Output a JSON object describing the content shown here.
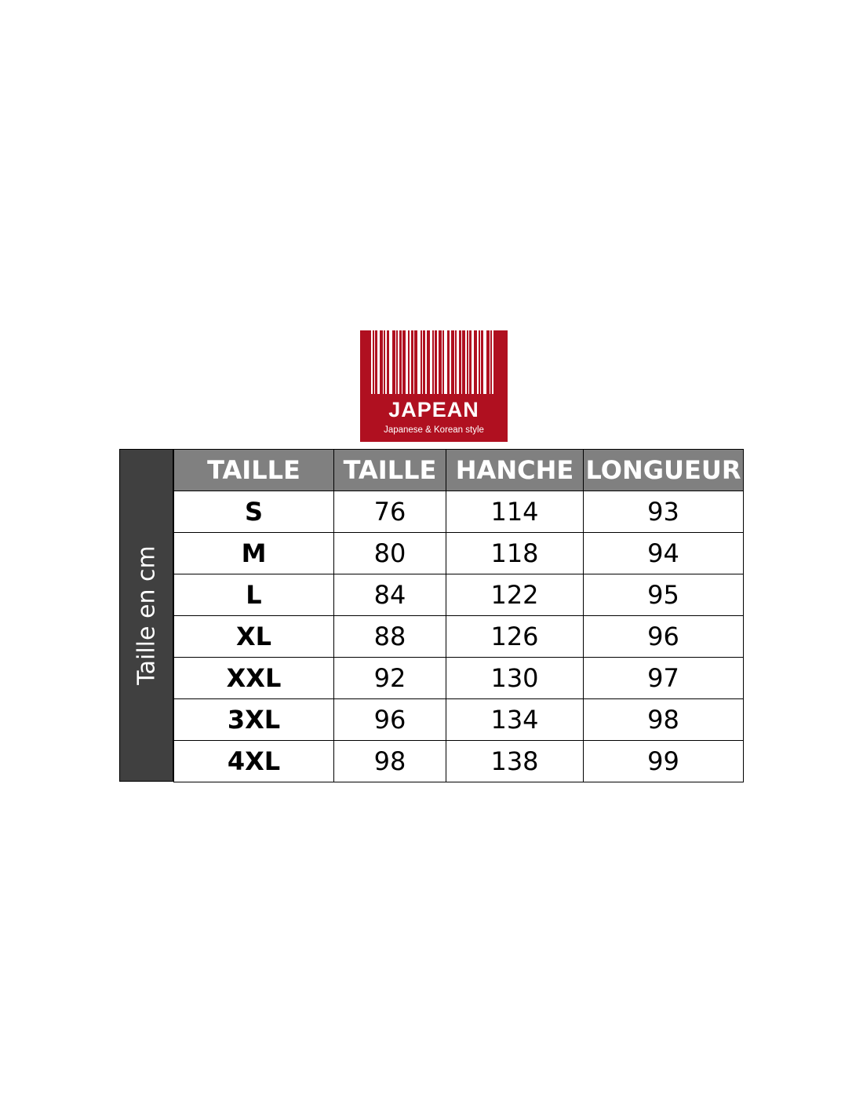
{
  "logo": {
    "name": "JAPEAN",
    "tagline": "Japanese & Korean style",
    "color": "#b01020"
  },
  "side_label": "Taille en cm",
  "table": {
    "headers": [
      "TAILLE",
      "TAILLE",
      "HANCHE",
      "LONGUEUR"
    ],
    "rows": [
      [
        "S",
        "76",
        "114",
        "93"
      ],
      [
        "M",
        "80",
        "118",
        "94"
      ],
      [
        "L",
        "84",
        "122",
        "95"
      ],
      [
        "XL",
        "88",
        "126",
        "96"
      ],
      [
        "XXL",
        "92",
        "130",
        "97"
      ],
      [
        "3XL",
        "96",
        "134",
        "98"
      ],
      [
        "4XL",
        "98",
        "138",
        "99"
      ]
    ]
  }
}
